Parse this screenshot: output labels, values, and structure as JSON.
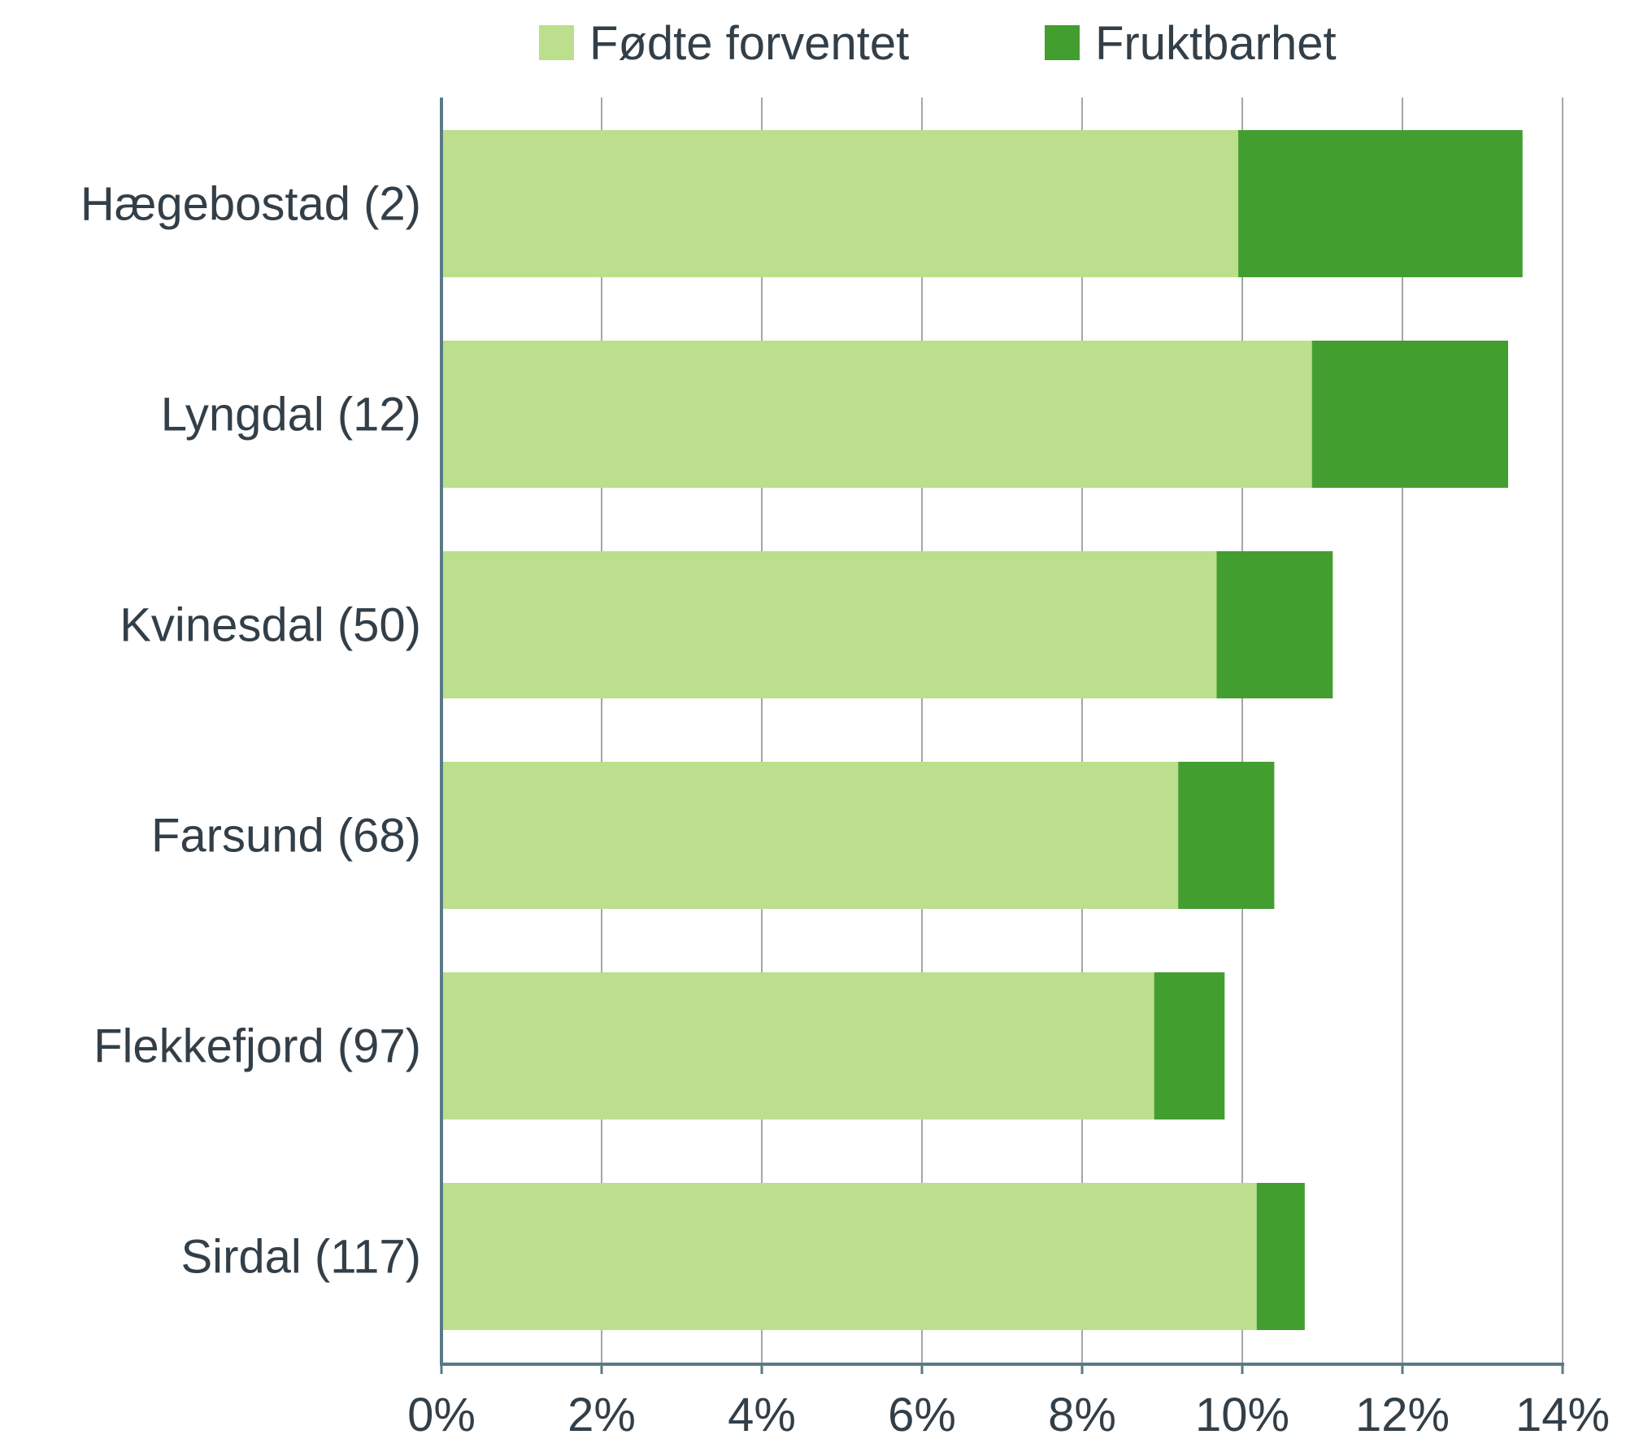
{
  "chart_data": {
    "type": "bar",
    "orientation": "horizontal",
    "stacked": true,
    "categories": [
      "Hægebostad (2)",
      "Lyngdal (12)",
      "Kvinesdal (50)",
      "Farsund (68)",
      "Flekkefjord (97)",
      "Sirdal (117)"
    ],
    "series": [
      {
        "name": "Fødte forventet",
        "color": "#bbdf8d",
        "values": [
          9.95,
          10.87,
          9.68,
          9.2,
          8.9,
          10.18
        ]
      },
      {
        "name": "Fruktbarhet",
        "color": "#439e30",
        "values": [
          3.55,
          2.45,
          1.45,
          1.2,
          0.88,
          0.6
        ]
      }
    ],
    "xlim": [
      0,
      14
    ],
    "xticks": [
      0,
      2,
      4,
      6,
      8,
      10,
      12,
      14
    ],
    "xtick_labels": [
      "0%",
      "2%",
      "4%",
      "6%",
      "8%",
      "10%",
      "12%",
      "14%"
    ],
    "grid": "vertical",
    "legend_position": "top",
    "axis_color": "#5a7a85",
    "grid_color": "#a6a6a6"
  }
}
